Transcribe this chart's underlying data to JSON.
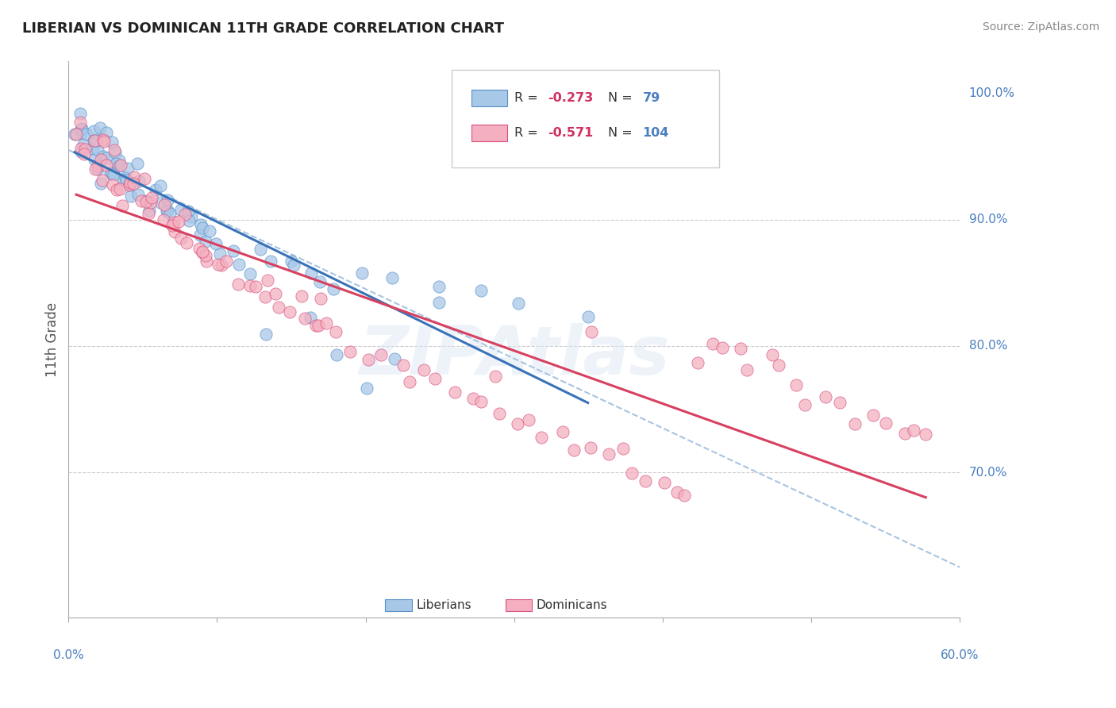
{
  "title": "LIBERIAN VS DOMINICAN 11TH GRADE CORRELATION CHART",
  "source_text": "Source: ZipAtlas.com",
  "ylabel": "11th Grade",
  "x_min": 0.0,
  "x_max": 0.6,
  "y_min": 0.585,
  "y_max": 1.025,
  "R_liberian": -0.273,
  "N_liberian": 79,
  "R_dominican": -0.571,
  "N_dominican": 104,
  "liberian_color": "#a8c8e8",
  "liberian_edge": "#5590c8",
  "dominican_color": "#f4b0c0",
  "dominican_edge": "#d85080",
  "trendline_liberian_color": "#3a72b8",
  "trendline_dominican_color": "#d84060",
  "dashed_line_color": "#a8c4e0",
  "grid_color": "#cccccc",
  "right_label_color": "#4a7fc0",
  "title_color": "#222222",
  "source_color": "#888888",
  "watermark_color": "#dce8f4",
  "ylabel_right_labels": [
    "100.0%",
    "90.0%",
    "80.0%",
    "70.0%"
  ],
  "ylabel_right_values": [
    1.0,
    0.9,
    0.8,
    0.7
  ],
  "x_tick_positions": [
    0.0,
    0.1,
    0.2,
    0.3,
    0.4,
    0.5,
    0.6
  ],
  "lib_x": [
    0.005,
    0.005,
    0.008,
    0.008,
    0.01,
    0.01,
    0.012,
    0.012,
    0.015,
    0.015,
    0.018,
    0.018,
    0.02,
    0.02,
    0.02,
    0.022,
    0.022,
    0.025,
    0.025,
    0.025,
    0.028,
    0.028,
    0.03,
    0.03,
    0.032,
    0.032,
    0.035,
    0.035,
    0.038,
    0.038,
    0.04,
    0.04,
    0.042,
    0.045,
    0.045,
    0.048,
    0.05,
    0.05,
    0.055,
    0.055,
    0.06,
    0.062,
    0.065,
    0.068,
    0.07,
    0.072,
    0.075,
    0.078,
    0.08,
    0.082,
    0.085,
    0.088,
    0.09,
    0.092,
    0.095,
    0.1,
    0.105,
    0.11,
    0.115,
    0.12,
    0.13,
    0.14,
    0.15,
    0.16,
    0.17,
    0.18,
    0.2,
    0.22,
    0.25,
    0.28,
    0.3,
    0.22,
    0.18,
    0.13,
    0.16,
    0.25,
    0.2,
    0.15,
    0.35
  ],
  "lib_y": [
    0.975,
    0.965,
    0.98,
    0.97,
    0.975,
    0.96,
    0.97,
    0.955,
    0.965,
    0.95,
    0.96,
    0.945,
    0.97,
    0.955,
    0.94,
    0.965,
    0.95,
    0.96,
    0.945,
    0.93,
    0.955,
    0.94,
    0.96,
    0.945,
    0.95,
    0.935,
    0.945,
    0.93,
    0.94,
    0.925,
    0.935,
    0.92,
    0.93,
    0.94,
    0.925,
    0.925,
    0.93,
    0.915,
    0.925,
    0.91,
    0.92,
    0.915,
    0.91,
    0.905,
    0.915,
    0.905,
    0.905,
    0.9,
    0.905,
    0.895,
    0.895,
    0.89,
    0.895,
    0.885,
    0.89,
    0.885,
    0.88,
    0.875,
    0.87,
    0.865,
    0.875,
    0.87,
    0.865,
    0.86,
    0.855,
    0.85,
    0.86,
    0.855,
    0.85,
    0.845,
    0.84,
    0.79,
    0.8,
    0.81,
    0.82,
    0.83,
    0.76,
    0.87,
    0.82
  ],
  "dom_x": [
    0.005,
    0.005,
    0.008,
    0.01,
    0.012,
    0.015,
    0.018,
    0.02,
    0.02,
    0.022,
    0.025,
    0.025,
    0.028,
    0.03,
    0.03,
    0.032,
    0.035,
    0.035,
    0.038,
    0.04,
    0.04,
    0.042,
    0.045,
    0.048,
    0.05,
    0.05,
    0.055,
    0.058,
    0.06,
    0.062,
    0.065,
    0.068,
    0.07,
    0.072,
    0.075,
    0.078,
    0.08,
    0.082,
    0.085,
    0.088,
    0.09,
    0.092,
    0.095,
    0.1,
    0.105,
    0.11,
    0.115,
    0.12,
    0.125,
    0.13,
    0.135,
    0.14,
    0.145,
    0.15,
    0.155,
    0.16,
    0.165,
    0.17,
    0.175,
    0.18,
    0.19,
    0.2,
    0.21,
    0.22,
    0.23,
    0.24,
    0.25,
    0.26,
    0.27,
    0.28,
    0.29,
    0.3,
    0.31,
    0.32,
    0.33,
    0.34,
    0.35,
    0.36,
    0.37,
    0.38,
    0.39,
    0.4,
    0.41,
    0.42,
    0.43,
    0.44,
    0.45,
    0.46,
    0.47,
    0.48,
    0.49,
    0.5,
    0.51,
    0.52,
    0.53,
    0.54,
    0.55,
    0.56,
    0.57,
    0.58,
    0.17,
    0.35,
    0.42,
    0.285
  ],
  "dom_y": [
    0.965,
    0.975,
    0.96,
    0.955,
    0.965,
    0.95,
    0.945,
    0.96,
    0.94,
    0.955,
    0.945,
    0.935,
    0.94,
    0.95,
    0.93,
    0.945,
    0.935,
    0.92,
    0.93,
    0.94,
    0.92,
    0.935,
    0.925,
    0.915,
    0.93,
    0.91,
    0.92,
    0.91,
    0.915,
    0.9,
    0.905,
    0.895,
    0.9,
    0.89,
    0.895,
    0.885,
    0.89,
    0.88,
    0.88,
    0.875,
    0.875,
    0.87,
    0.87,
    0.865,
    0.865,
    0.86,
    0.855,
    0.855,
    0.85,
    0.845,
    0.845,
    0.84,
    0.835,
    0.83,
    0.825,
    0.825,
    0.82,
    0.815,
    0.815,
    0.81,
    0.8,
    0.795,
    0.79,
    0.785,
    0.78,
    0.775,
    0.77,
    0.765,
    0.76,
    0.755,
    0.75,
    0.745,
    0.74,
    0.735,
    0.73,
    0.725,
    0.72,
    0.715,
    0.71,
    0.705,
    0.7,
    0.695,
    0.69,
    0.685,
    0.8,
    0.795,
    0.79,
    0.785,
    0.78,
    0.775,
    0.77,
    0.765,
    0.76,
    0.755,
    0.75,
    0.745,
    0.74,
    0.735,
    0.73,
    0.725,
    0.84,
    0.81,
    0.79,
    0.78
  ]
}
